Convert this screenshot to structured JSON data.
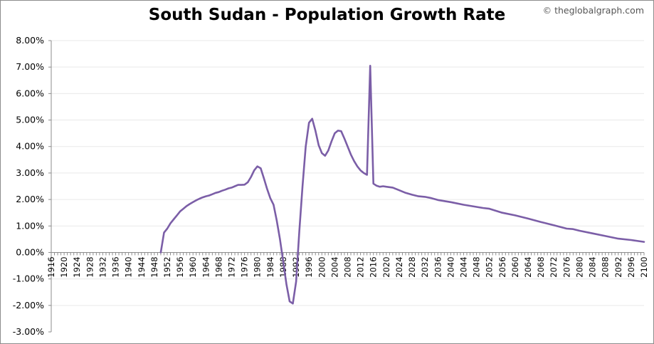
{
  "title": "South Sudan - Population Growth Rate",
  "watermark": "© theglobalgraph.com",
  "colors": {
    "line": "#7b5ea7",
    "grid": "#e9e9e9",
    "axis": "#8c8c8c",
    "background": "#ffffff"
  },
  "chart_data": {
    "type": "line",
    "title": "South Sudan - Population Growth Rate",
    "xlabel": "",
    "ylabel": "",
    "xlim": [
      1916,
      2100
    ],
    "ylim": [
      -3,
      8
    ],
    "grid": true,
    "legend": "none",
    "x_tick_labels": [
      "1916",
      "1920",
      "1924",
      "1928",
      "1932",
      "1936",
      "1940",
      "1944",
      "1948",
      "1952",
      "1956",
      "1960",
      "1964",
      "1968",
      "1972",
      "1976",
      "1980",
      "1984",
      "1988",
      "1992",
      "1996",
      "2000",
      "2004",
      "2008",
      "2012",
      "2016",
      "2020",
      "2024",
      "2028",
      "2032",
      "2036",
      "2040",
      "2044",
      "2048",
      "2052",
      "2056",
      "2060",
      "2064",
      "2068",
      "2072",
      "2076",
      "2080",
      "2084",
      "2088",
      "2092",
      "2096",
      "2100"
    ],
    "y_tick_labels": [
      "-3.00%",
      "-2.00%",
      "-1.00%",
      "0.00%",
      "1.00%",
      "2.00%",
      "3.00%",
      "4.00%",
      "5.00%",
      "6.00%",
      "7.00%",
      "8.00%"
    ],
    "y_tick_values": [
      -3,
      -2,
      -1,
      0,
      1,
      2,
      3,
      4,
      5,
      6,
      7,
      8
    ],
    "series": [
      {
        "x": [
          1950,
          1951,
          1952,
          1953,
          1954,
          1955,
          1956,
          1957,
          1958,
          1959,
          1960,
          1961,
          1962,
          1963,
          1964,
          1965,
          1966,
          1967,
          1968,
          1969,
          1970,
          1971,
          1972,
          1973,
          1974,
          1975,
          1976,
          1977,
          1978,
          1979,
          1980,
          1981,
          1982,
          1983,
          1984,
          1985,
          1986,
          1987,
          1988,
          1989,
          1990,
          1991,
          1992,
          1993,
          1994,
          1995,
          1996,
          1997,
          1998,
          1999,
          2000,
          2001,
          2002,
          2003,
          2004,
          2005,
          2006,
          2007,
          2008,
          2009,
          2010,
          2011,
          2012,
          2013,
          2014,
          2015,
          2016,
          2017,
          2018,
          2019,
          2020,
          2022,
          2024,
          2026,
          2028,
          2030,
          2032,
          2034,
          2036,
          2040,
          2044,
          2048,
          2050,
          2052,
          2056,
          2060,
          2064,
          2068,
          2072,
          2076,
          2078,
          2080,
          2084,
          2088,
          2092,
          2096,
          2100
        ],
        "values": [
          0.0,
          0.75,
          0.9,
          1.1,
          1.25,
          1.4,
          1.55,
          1.65,
          1.75,
          1.83,
          1.9,
          1.97,
          2.03,
          2.08,
          2.12,
          2.15,
          2.2,
          2.25,
          2.28,
          2.33,
          2.37,
          2.42,
          2.45,
          2.5,
          2.55,
          2.55,
          2.56,
          2.65,
          2.85,
          3.1,
          3.25,
          3.18,
          2.8,
          2.4,
          2.05,
          1.8,
          1.2,
          0.5,
          -0.35,
          -1.2,
          -1.85,
          -1.93,
          -1.1,
          0.8,
          2.5,
          4.0,
          4.9,
          5.05,
          4.6,
          4.05,
          3.75,
          3.65,
          3.85,
          4.2,
          4.5,
          4.6,
          4.58,
          4.3,
          4.0,
          3.7,
          3.45,
          3.25,
          3.1,
          3.0,
          2.93,
          7.05,
          2.6,
          2.52,
          2.48,
          2.5,
          2.48,
          2.45,
          2.35,
          2.25,
          2.18,
          2.12,
          2.1,
          2.05,
          1.98,
          1.9,
          1.8,
          1.72,
          1.68,
          1.65,
          1.5,
          1.4,
          1.28,
          1.15,
          1.03,
          0.9,
          0.88,
          0.82,
          0.72,
          0.62,
          0.52,
          0.47,
          0.4
        ]
      }
    ]
  }
}
